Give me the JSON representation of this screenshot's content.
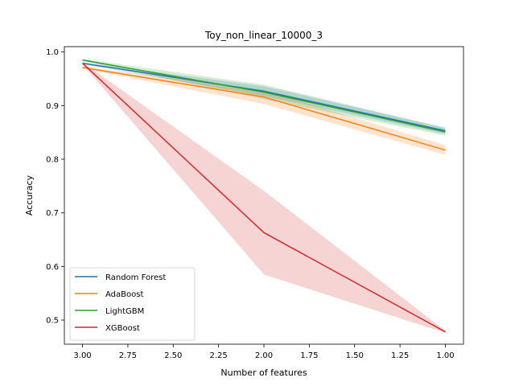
{
  "chart_data": {
    "type": "line",
    "title": "Toy_non_linear_10000_3",
    "xlabel": "Number of features",
    "ylabel": "Accuracy",
    "xlim": [
      3.1,
      0.9
    ],
    "ylim": [
      0.455,
      1.01
    ],
    "xticks": [
      "3.00",
      "2.75",
      "2.50",
      "2.25",
      "2.00",
      "1.75",
      "1.50",
      "1.25",
      "1.00"
    ],
    "xtick_values": [
      3.0,
      2.75,
      2.5,
      2.25,
      2.0,
      1.75,
      1.5,
      1.25,
      1.0
    ],
    "yticks": [
      "0.5",
      "0.6",
      "0.7",
      "0.8",
      "0.9",
      "1.0"
    ],
    "ytick_values": [
      0.5,
      0.6,
      0.7,
      0.8,
      0.9,
      1.0
    ],
    "grid": false,
    "legend_position": "lower-left",
    "x": [
      3,
      2,
      1
    ],
    "series": [
      {
        "name": "Random Forest",
        "color": "#1f77b4",
        "values": [
          0.979,
          0.927,
          0.853
        ],
        "lower": [
          0.977,
          0.918,
          0.847
        ],
        "upper": [
          0.981,
          0.936,
          0.859
        ]
      },
      {
        "name": "AdaBoost",
        "color": "#ff7f0e",
        "values": [
          0.971,
          0.916,
          0.817
        ],
        "lower": [
          0.969,
          0.903,
          0.808
        ],
        "upper": [
          0.973,
          0.929,
          0.826
        ]
      },
      {
        "name": "LightGBM",
        "color": "#2ca02c",
        "values": [
          0.985,
          0.925,
          0.851
        ],
        "lower": [
          0.983,
          0.912,
          0.844
        ],
        "upper": [
          0.987,
          0.939,
          0.858
        ]
      },
      {
        "name": "XGBoost",
        "color": "#d62728",
        "values": [
          0.979,
          0.663,
          0.478
        ],
        "lower": [
          0.977,
          0.585,
          0.476
        ],
        "upper": [
          0.981,
          0.741,
          0.48
        ]
      }
    ]
  }
}
